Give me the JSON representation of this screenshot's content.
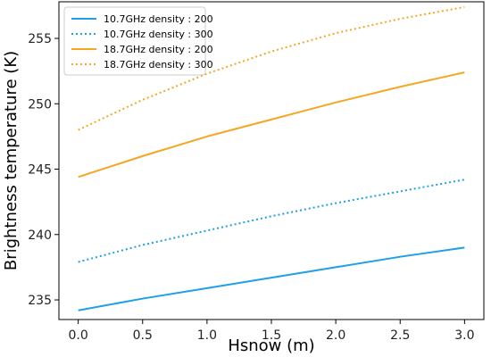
{
  "chart_data": {
    "type": "line",
    "xlabel": "Hsnow (m)",
    "ylabel": "Brightness temperature (K)",
    "xlim": [
      -0.15,
      3.15
    ],
    "ylim": [
      233.5,
      257.8
    ],
    "xticks": [
      0.0,
      0.5,
      1.0,
      1.5,
      2.0,
      2.5,
      3.0
    ],
    "xtick_labels": [
      "0.0",
      "0.5",
      "1.0",
      "1.5",
      "2.0",
      "2.5",
      "3.0"
    ],
    "yticks": [
      235,
      240,
      245,
      250,
      255
    ],
    "ytick_labels": [
      "235",
      "240",
      "245",
      "250",
      "255"
    ],
    "grid": false,
    "legend_position": "top-left",
    "x": [
      0.0,
      0.5,
      1.0,
      1.5,
      2.0,
      2.5,
      3.0
    ],
    "series": [
      {
        "name": "10.7GHz density : 200",
        "color": "#1f9fe8",
        "style": "solid",
        "values": [
          234.2,
          235.1,
          235.9,
          236.7,
          237.5,
          238.3,
          239.0
        ]
      },
      {
        "name": "10.7GHz density : 300",
        "color": "#1f9fe8",
        "style": "dotted",
        "values": [
          237.9,
          239.2,
          240.3,
          241.4,
          242.4,
          243.3,
          244.2
        ]
      },
      {
        "name": "18.7GHz density : 200",
        "color": "#f5a623",
        "style": "solid",
        "values": [
          244.4,
          246.0,
          247.5,
          248.8,
          250.1,
          251.3,
          252.4
        ]
      },
      {
        "name": "18.7GHz density : 300",
        "color": "#f5a623",
        "style": "dotted",
        "values": [
          248.0,
          250.3,
          252.3,
          254.0,
          255.4,
          256.5,
          257.4
        ]
      }
    ]
  }
}
